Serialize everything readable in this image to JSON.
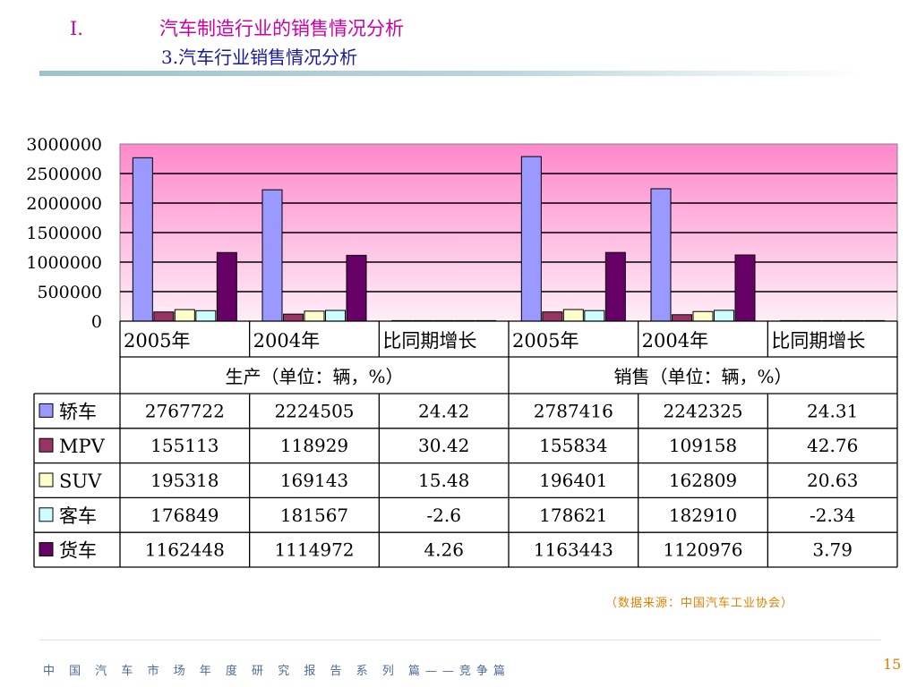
{
  "header": {
    "section_num": "I.",
    "title": "汽车制造行业的销售情况分析",
    "subtitle": "3.汽车行业销售情况分析"
  },
  "chart_data": {
    "type": "bar",
    "categories": [
      "2005年",
      "2004年",
      "比同期增长",
      "2005年",
      "2004年",
      "比同期增长"
    ],
    "groups": [
      {
        "label": "生产（单位：辆，%）"
      },
      {
        "label": "销售（单位：辆，%）"
      }
    ],
    "series": [
      {
        "name": "轿车",
        "color": "#9999ff",
        "values": [
          2767722,
          2224505,
          24.42,
          2787416,
          2242325,
          24.31
        ]
      },
      {
        "name": "MPV",
        "color": "#993366",
        "values": [
          155113,
          118929,
          30.42,
          155834,
          109158,
          42.76
        ]
      },
      {
        "name": "SUV",
        "color": "#ffffcc",
        "values": [
          195318,
          169143,
          15.48,
          196401,
          162809,
          20.63
        ]
      },
      {
        "name": "客车",
        "color": "#ccffff",
        "values": [
          176849,
          181567,
          -2.6,
          178621,
          182910,
          -2.34
        ]
      },
      {
        "name": "货车",
        "color": "#660066",
        "values": [
          1162448,
          1114972,
          4.26,
          1163443,
          1120976,
          3.79
        ]
      }
    ],
    "table_cells": [
      [
        "2767722",
        "2224505",
        "24.42",
        "2787416",
        "2242325",
        "24.31"
      ],
      [
        "155113",
        "118929",
        "30.42",
        "155834",
        "109158",
        "42.76"
      ],
      [
        "195318",
        "169143",
        "15.48",
        "196401",
        "162809",
        "20.63"
      ],
      [
        "176849",
        "181567",
        "-2.6",
        "178621",
        "182910",
        "-2.34"
      ],
      [
        "1162448",
        "1114972",
        "4.26",
        "1163443",
        "1120976",
        "3.79"
      ]
    ],
    "yticks": [
      "3000000",
      "2500000",
      "2000000",
      "1500000",
      "1000000",
      "500000",
      "0"
    ],
    "ylim": [
      0,
      3000000
    ],
    "grid": true,
    "plot_background": [
      "#ff88cc",
      "#ffeef7"
    ]
  },
  "source_note": "（数据来源：中国汽车工业协会）",
  "footer": {
    "text": "中 国 汽 车 市 场 年 度 研 究 报 告 系 列 篇——竞争篇",
    "page": "15"
  }
}
